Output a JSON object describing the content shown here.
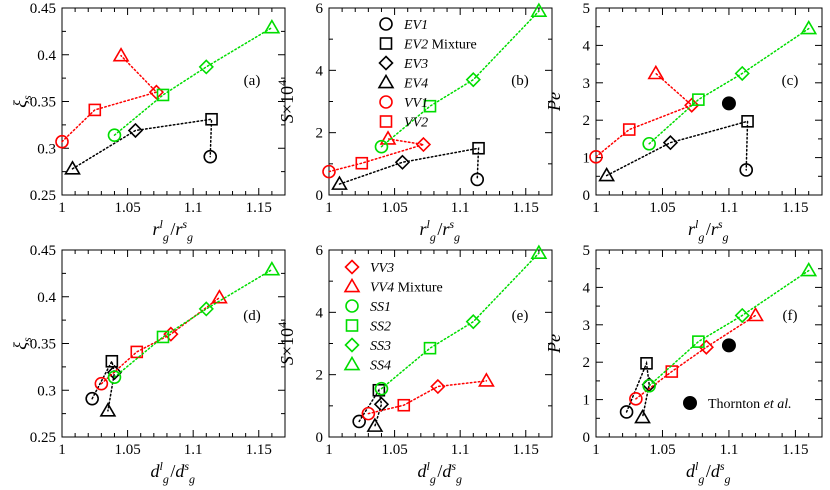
{
  "colors": {
    "EV": "#000000",
    "VV": "#ff0000",
    "SS": "#00dd00",
    "thornton": "#000000"
  },
  "legend_mixture_word": "Mixture",
  "chart_data": [
    {
      "id": "a",
      "type": "scatter",
      "panel_label": "(a)",
      "xlabel": "r_g^l/r_g^s",
      "ylabel": "ξ_s",
      "xlim": [
        1.0,
        1.17
      ],
      "ylim": [
        0.25,
        0.45
      ],
      "xticks": [
        "1",
        "1.05",
        "1.1",
        "1.15"
      ],
      "yticks": [
        "0.25",
        "0.3",
        "0.35",
        "0.4",
        "0.45"
      ],
      "series": [
        {
          "group": "EV",
          "points": [
            [
              1.008,
              0.278
            ],
            [
              1.056,
              0.319
            ],
            [
              1.114,
              0.331
            ],
            [
              1.113,
              0.291
            ]
          ],
          "markers": [
            "triangle",
            "diamond",
            "square",
            "circle"
          ]
        },
        {
          "group": "VV",
          "points": [
            [
              1.0,
              0.307
            ],
            [
              1.025,
              0.341
            ],
            [
              1.072,
              0.36
            ],
            [
              1.045,
              0.399
            ]
          ],
          "markers": [
            "circle",
            "square",
            "diamond",
            "triangle"
          ]
        },
        {
          "group": "SS",
          "points": [
            [
              1.04,
              0.314
            ],
            [
              1.077,
              0.357
            ],
            [
              1.11,
              0.387
            ],
            [
              1.16,
              0.429
            ]
          ],
          "markers": [
            "circle",
            "square",
            "diamond",
            "triangle"
          ]
        }
      ]
    },
    {
      "id": "b",
      "type": "scatter",
      "panel_label": "(b)",
      "xlabel": "r_g^l/r_g^s",
      "ylabel": "S×10^4",
      "xlim": [
        1.0,
        1.17
      ],
      "ylim": [
        0,
        6
      ],
      "xticks": [
        "1",
        "1.05",
        "1.1",
        "1.15"
      ],
      "yticks": [
        "0",
        "2",
        "4",
        "6"
      ],
      "series": [
        {
          "group": "EV",
          "points": [
            [
              1.008,
              0.35
            ],
            [
              1.056,
              1.05
            ],
            [
              1.114,
              1.5
            ],
            [
              1.113,
              0.5
            ]
          ],
          "markers": [
            "triangle",
            "diamond",
            "square",
            "circle"
          ]
        },
        {
          "group": "VV",
          "points": [
            [
              1.0,
              0.75
            ],
            [
              1.025,
              1.02
            ],
            [
              1.072,
              1.62
            ],
            [
              1.045,
              1.8
            ]
          ],
          "markers": [
            "circle",
            "square",
            "diamond",
            "triangle"
          ]
        },
        {
          "group": "SS",
          "points": [
            [
              1.04,
              1.55
            ],
            [
              1.077,
              2.85
            ],
            [
              1.11,
              3.7
            ],
            [
              1.16,
              5.9
            ]
          ],
          "markers": [
            "circle",
            "square",
            "diamond",
            "triangle"
          ]
        }
      ]
    },
    {
      "id": "c",
      "type": "scatter",
      "panel_label": "(c)",
      "xlabel": "r_g^l/r_g^s",
      "ylabel": "Pe",
      "xlim": [
        1.0,
        1.17
      ],
      "ylim": [
        0,
        5
      ],
      "xticks": [
        "1",
        "1.05",
        "1.1",
        "1.15"
      ],
      "yticks": [
        "0",
        "1",
        "2",
        "3",
        "4",
        "5"
      ],
      "series": [
        {
          "group": "EV",
          "points": [
            [
              1.008,
              0.52
            ],
            [
              1.056,
              1.4
            ],
            [
              1.114,
              1.97
            ],
            [
              1.113,
              0.67
            ]
          ],
          "markers": [
            "triangle",
            "diamond",
            "square",
            "circle"
          ]
        },
        {
          "group": "VV",
          "points": [
            [
              1.0,
              1.02
            ],
            [
              1.025,
              1.75
            ],
            [
              1.072,
              2.4
            ],
            [
              1.045,
              3.25
            ]
          ],
          "markers": [
            "circle",
            "square",
            "diamond",
            "triangle"
          ]
        },
        {
          "group": "SS",
          "points": [
            [
              1.04,
              1.37
            ],
            [
              1.077,
              2.55
            ],
            [
              1.11,
              3.25
            ],
            [
              1.16,
              4.45
            ]
          ],
          "markers": [
            "circle",
            "square",
            "diamond",
            "triangle"
          ]
        }
      ],
      "extra_points": [
        {
          "x": 1.1,
          "y": 2.45,
          "name": "Thornton et al."
        }
      ]
    },
    {
      "id": "d",
      "type": "scatter",
      "panel_label": "(d)",
      "xlabel": "d_g^l/d_g^s",
      "ylabel": "ξ_s",
      "xlim": [
        1.0,
        1.17
      ],
      "ylim": [
        0.25,
        0.45
      ],
      "xticks": [
        "1",
        "1.05",
        "1.1",
        "1.15"
      ],
      "yticks": [
        "0.25",
        "0.3",
        "0.35",
        "0.4",
        "0.45"
      ],
      "series": [
        {
          "group": "EV",
          "points": [
            [
              1.023,
              0.291
            ],
            [
              1.038,
              0.331
            ],
            [
              1.04,
              0.319
            ],
            [
              1.035,
              0.278
            ]
          ],
          "markers": [
            "circle",
            "square",
            "diamond",
            "triangle"
          ]
        },
        {
          "group": "VV",
          "points": [
            [
              1.03,
              0.307
            ],
            [
              1.057,
              0.341
            ],
            [
              1.083,
              0.36
            ],
            [
              1.12,
              0.399
            ]
          ],
          "markers": [
            "circle",
            "square",
            "diamond",
            "triangle"
          ]
        },
        {
          "group": "SS",
          "points": [
            [
              1.04,
              0.314
            ],
            [
              1.077,
              0.357
            ],
            [
              1.11,
              0.387
            ],
            [
              1.16,
              0.429
            ]
          ],
          "markers": [
            "circle",
            "square",
            "diamond",
            "triangle"
          ]
        }
      ]
    },
    {
      "id": "e",
      "type": "scatter",
      "panel_label": "(e)",
      "xlabel": "d_g^l/d_g^s",
      "ylabel": "S×10^4",
      "xlim": [
        1.0,
        1.17
      ],
      "ylim": [
        0,
        6
      ],
      "xticks": [
        "1",
        "1.05",
        "1.1",
        "1.15"
      ],
      "yticks": [
        "0",
        "2",
        "4",
        "6"
      ],
      "series": [
        {
          "group": "EV",
          "points": [
            [
              1.023,
              0.5
            ],
            [
              1.038,
              1.5
            ],
            [
              1.04,
              1.05
            ],
            [
              1.035,
              0.35
            ]
          ],
          "markers": [
            "circle",
            "square",
            "diamond",
            "triangle"
          ]
        },
        {
          "group": "VV",
          "points": [
            [
              1.03,
              0.75
            ],
            [
              1.057,
              1.02
            ],
            [
              1.083,
              1.62
            ],
            [
              1.12,
              1.8
            ]
          ],
          "markers": [
            "circle",
            "square",
            "diamond",
            "triangle"
          ]
        },
        {
          "group": "SS",
          "points": [
            [
              1.04,
              1.55
            ],
            [
              1.077,
              2.85
            ],
            [
              1.11,
              3.7
            ],
            [
              1.16,
              5.9
            ]
          ],
          "markers": [
            "circle",
            "square",
            "diamond",
            "triangle"
          ]
        }
      ]
    },
    {
      "id": "f",
      "type": "scatter",
      "panel_label": "(f)",
      "xlabel": "d_g^l/d_g^s",
      "ylabel": "Pe",
      "xlim": [
        1.0,
        1.17
      ],
      "ylim": [
        0,
        5
      ],
      "xticks": [
        "1",
        "1.05",
        "1.1",
        "1.15"
      ],
      "yticks": [
        "0",
        "1",
        "2",
        "3",
        "4",
        "5"
      ],
      "series": [
        {
          "group": "EV",
          "points": [
            [
              1.023,
              0.67
            ],
            [
              1.038,
              1.97
            ],
            [
              1.04,
              1.4
            ],
            [
              1.035,
              0.52
            ]
          ],
          "markers": [
            "circle",
            "square",
            "diamond",
            "triangle"
          ]
        },
        {
          "group": "VV",
          "points": [
            [
              1.03,
              1.02
            ],
            [
              1.057,
              1.75
            ],
            [
              1.083,
              2.4
            ],
            [
              1.12,
              3.25
            ]
          ],
          "markers": [
            "circle",
            "square",
            "diamond",
            "triangle"
          ]
        },
        {
          "group": "SS",
          "points": [
            [
              1.04,
              1.37
            ],
            [
              1.077,
              2.55
            ],
            [
              1.11,
              3.25
            ],
            [
              1.16,
              4.45
            ]
          ],
          "markers": [
            "circle",
            "square",
            "diamond",
            "triangle"
          ]
        }
      ],
      "extra_points": [
        {
          "x": 1.1,
          "y": 2.45,
          "name": "Thornton et al."
        }
      ]
    }
  ],
  "legends": [
    {
      "panel": "b",
      "entries": [
        {
          "label": "EV1",
          "marker": "circle",
          "group": "EV"
        },
        {
          "label": "EV2",
          "marker": "square",
          "group": "EV",
          "suffix": "Mixture"
        },
        {
          "label": "EV3",
          "marker": "diamond",
          "group": "EV"
        },
        {
          "label": "EV4",
          "marker": "triangle",
          "group": "EV"
        },
        {
          "label": "VV1",
          "marker": "circle",
          "group": "VV"
        },
        {
          "label": "VV2",
          "marker": "square",
          "group": "VV"
        }
      ]
    },
    {
      "panel": "e",
      "entries": [
        {
          "label": "VV3",
          "marker": "diamond",
          "group": "VV"
        },
        {
          "label": "VV4",
          "marker": "triangle",
          "group": "VV",
          "suffix": "Mixture"
        },
        {
          "label": "SS1",
          "marker": "circle",
          "group": "SS"
        },
        {
          "label": "SS2",
          "marker": "square",
          "group": "SS"
        },
        {
          "label": "SS3",
          "marker": "diamond",
          "group": "SS"
        },
        {
          "label": "SS4",
          "marker": "triangle",
          "group": "SS"
        }
      ]
    },
    {
      "panel": "f",
      "entries": [
        {
          "label": "Thornton",
          "suffix": "et al.",
          "marker": "filled-circle",
          "group": "thornton"
        }
      ]
    }
  ]
}
